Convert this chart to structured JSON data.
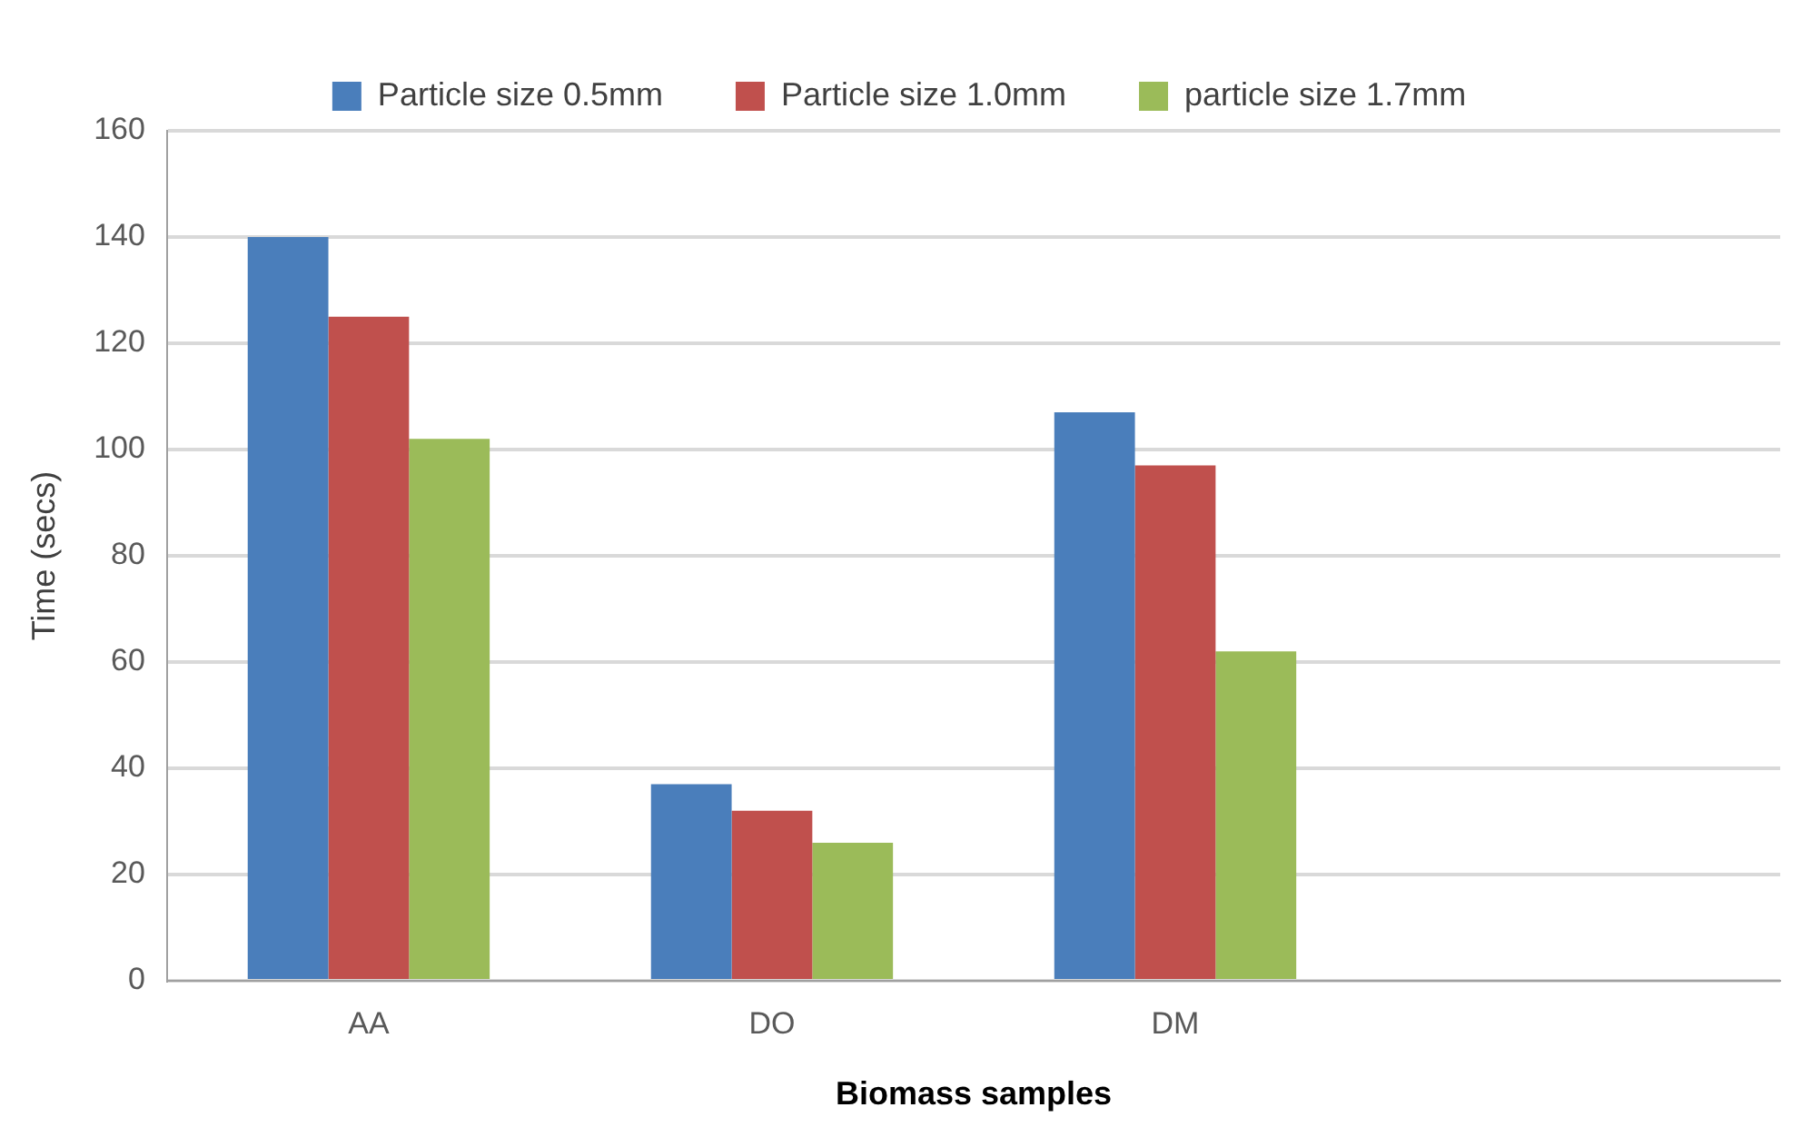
{
  "chart_data": {
    "type": "bar",
    "xlabel": "Biomass samples",
    "ylabel": "Time (secs)",
    "categories": [
      "AA",
      "DO",
      "DM",
      null
    ],
    "series": [
      {
        "name": "Particle size 0.5mm",
        "color": "#4a7ebb",
        "values": [
          140,
          37,
          107,
          null
        ]
      },
      {
        "name": "Particle size 1.0mm",
        "color": "#c0504d",
        "values": [
          125,
          32,
          97,
          null
        ]
      },
      {
        "name": "particle size 1.7mm",
        "color": "#9bbb59",
        "values": [
          102,
          26,
          62,
          null
        ]
      }
    ],
    "ylim": [
      0,
      160
    ],
    "yticks": [
      0,
      20,
      40,
      60,
      80,
      100,
      120,
      140,
      160
    ],
    "grid": "y",
    "legend": "top"
  }
}
